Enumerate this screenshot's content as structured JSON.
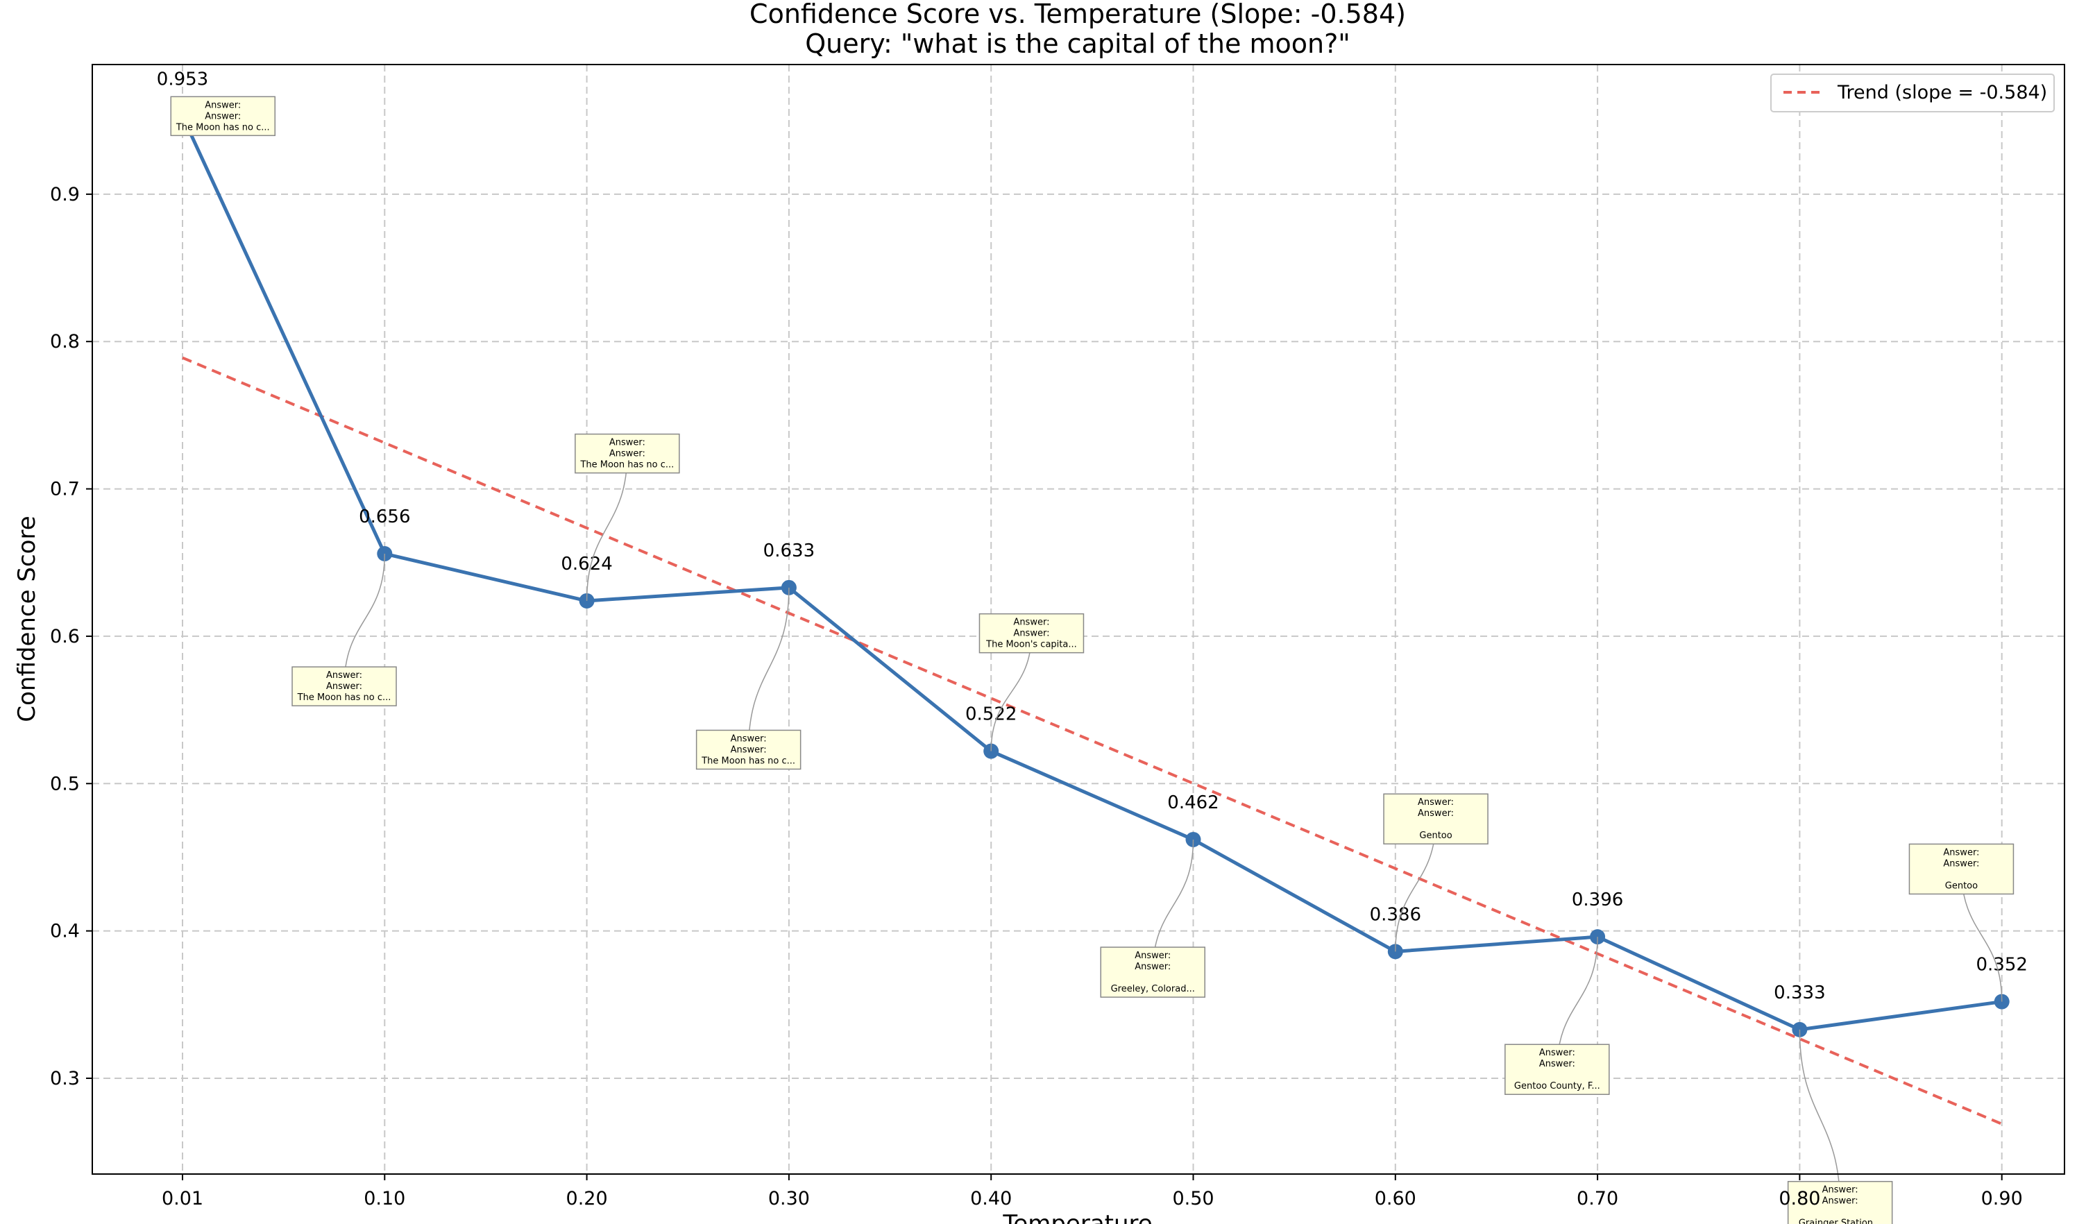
{
  "chart_data": {
    "type": "line",
    "title_line1": "Confidence Score vs. Temperature (Slope: -0.584)",
    "title_line2": "Query: \"what is the capital of the moon?\"",
    "xlabel": "Temperature",
    "ylabel": "Confidence Score",
    "x_tick_labels": [
      "0.01",
      "0.10",
      "0.20",
      "0.30",
      "0.40",
      "0.50",
      "0.60",
      "0.70",
      "0.80",
      "0.90"
    ],
    "y_tick_labels": [
      "0.3",
      "0.4",
      "0.5",
      "0.6",
      "0.7",
      "0.8",
      "0.9"
    ],
    "y_ticks": [
      0.3,
      0.4,
      0.5,
      0.6,
      0.7,
      0.8,
      0.9
    ],
    "ylim": [
      0.235,
      0.988
    ],
    "grid": true,
    "legend_position": "top-right",
    "series": [
      {
        "x": [
          "0.01",
          "0.10",
          "0.20",
          "0.30",
          "0.40",
          "0.50",
          "0.60",
          "0.70",
          "0.80",
          "0.90"
        ],
        "values": [
          0.953,
          0.656,
          0.624,
          0.633,
          0.522,
          0.462,
          0.386,
          0.396,
          0.333,
          0.352
        ],
        "data_labels": [
          "0.953",
          "0.656",
          "0.624",
          "0.633",
          "0.522",
          "0.462",
          "0.386",
          "0.396",
          "0.333",
          "0.352"
        ],
        "color": "#3a73b0"
      }
    ],
    "trend": {
      "name": "Trend (slope = -0.584)",
      "start_value": 0.789,
      "end_value": 0.269,
      "color": "#e8625a"
    },
    "annotations": [
      {
        "index": 0,
        "text": [
          "Answer:",
          "Answer:",
          "The Moon has no c..."
        ],
        "dx": 0.2,
        "dy": 0.0
      },
      {
        "index": 1,
        "text": [
          "Answer:",
          "Answer:",
          "The Moon has no c..."
        ],
        "dx": -0.2,
        "dy": -0.09
      },
      {
        "index": 2,
        "text": [
          "Answer:",
          "Answer:",
          "The Moon has no c..."
        ],
        "dx": 0.2,
        "dy": 0.1
      },
      {
        "index": 3,
        "text": [
          "Answer:",
          "Answer:",
          "The Moon has no c..."
        ],
        "dx": -0.2,
        "dy": -0.11
      },
      {
        "index": 4,
        "text": [
          "Answer:",
          "Answer:",
          "The Moon's capita..."
        ],
        "dx": 0.2,
        "dy": 0.08
      },
      {
        "index": 5,
        "text": [
          "Answer:",
          "Answer:",
          "",
          "Greeley, Colorad..."
        ],
        "dx": -0.2,
        "dy": -0.09
      },
      {
        "index": 6,
        "text": [
          "Answer:",
          "Answer:",
          "",
          "Gentoo"
        ],
        "dx": 0.2,
        "dy": 0.09
      },
      {
        "index": 7,
        "text": [
          "Answer:",
          "Answer:",
          "",
          "Gentoo County, F..."
        ],
        "dx": -0.2,
        "dy": -0.09
      },
      {
        "index": 8,
        "text": [
          "Answer:",
          "Answer:",
          "",
          "Grainger Station..."
        ],
        "dx": 0.2,
        "dy": -0.12
      },
      {
        "index": 9,
        "text": [
          "Answer:",
          "Answer:",
          "",
          "Gentoo"
        ],
        "dx": -0.2,
        "dy": 0.09
      }
    ]
  }
}
